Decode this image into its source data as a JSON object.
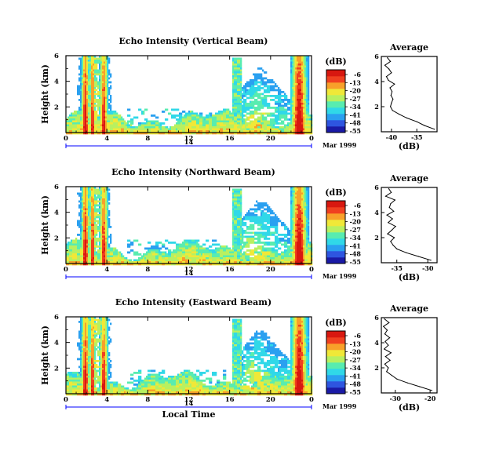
{
  "chart_data": [
    {
      "type": "heatmap",
      "title": "Echo Intensity (Vertical Beam)",
      "ylabel": "Height (km)",
      "xlabel": "",
      "x_ticks": [
        "0",
        "4",
        "8",
        "12",
        "16",
        "20",
        "0"
      ],
      "xlim": [
        0,
        24
      ],
      "y_ticks": [
        "6",
        "4",
        "2"
      ],
      "ylim": [
        0,
        6
      ],
      "date_marker": "14",
      "date_label": "Mar 1999",
      "colorbar": {
        "unit": "(dB)",
        "ticks": [
          "-6",
          "-13",
          "-20",
          "-27",
          "-34",
          "-41",
          "-48",
          "-55"
        ]
      },
      "profile": {
        "title": "Average",
        "xlabel": "(dB)",
        "x_ticks": [
          "-40",
          "-35"
        ],
        "xlim": [
          -42,
          -31
        ],
        "y_ticks": [
          "6",
          "4",
          "2"
        ],
        "ylim": [
          0,
          6
        ],
        "heights": [
          0.2,
          0.5,
          0.8,
          1.1,
          1.4,
          1.7,
          2.0,
          2.3,
          2.6,
          2.9,
          3.2,
          3.5,
          3.8,
          4.1,
          4.4,
          4.7,
          5.0,
          5.3,
          5.6,
          5.9
        ],
        "values": [
          -31.5,
          -33.5,
          -35.0,
          -37.0,
          -38.5,
          -39.8,
          -40.2,
          -40.0,
          -39.7,
          -40.1,
          -39.9,
          -40.3,
          -39.4,
          -40.6,
          -41.0,
          -40.0,
          -40.5,
          -41.3,
          -40.2,
          -40.8
        ]
      }
    },
    {
      "type": "heatmap",
      "title": "Echo Intensity (Northward Beam)",
      "ylabel": "Height (km)",
      "xlabel": "",
      "x_ticks": [
        "0",
        "4",
        "8",
        "12",
        "16",
        "20",
        "0"
      ],
      "xlim": [
        0,
        24
      ],
      "y_ticks": [
        "6",
        "4",
        "2"
      ],
      "ylim": [
        0,
        6
      ],
      "date_marker": "14",
      "date_label": "Mar 1999",
      "colorbar": {
        "unit": "(dB)",
        "ticks": [
          "-6",
          "-13",
          "-20",
          "-27",
          "-34",
          "-41",
          "-48",
          "-55"
        ]
      },
      "profile": {
        "title": "Average",
        "xlabel": "(dB)",
        "x_ticks": [
          "-35",
          "-30"
        ],
        "xlim": [
          -37.5,
          -28.5
        ],
        "y_ticks": [
          "6",
          "4",
          "2"
        ],
        "ylim": [
          0,
          6
        ],
        "heights": [
          0.2,
          0.5,
          0.8,
          1.1,
          1.4,
          1.7,
          2.0,
          2.3,
          2.6,
          2.9,
          3.2,
          3.5,
          3.8,
          4.1,
          4.4,
          4.7,
          5.0,
          5.3,
          5.6,
          5.9
        ],
        "values": [
          -29.5,
          -31.5,
          -33.5,
          -35.0,
          -35.6,
          -36.0,
          -35.4,
          -36.5,
          -35.8,
          -35.2,
          -36.4,
          -35.7,
          -36.6,
          -35.5,
          -36.2,
          -36.0,
          -35.3,
          -36.8,
          -35.9,
          -36.3
        ]
      }
    },
    {
      "type": "heatmap",
      "title": "Echo Intensity (Eastward Beam)",
      "ylabel": "Height (km)",
      "xlabel": "Local Time",
      "x_ticks": [
        "0",
        "4",
        "8",
        "12",
        "16",
        "20",
        "0"
      ],
      "xlim": [
        0,
        24
      ],
      "y_ticks": [
        "6",
        "4",
        "2"
      ],
      "ylim": [
        0,
        6
      ],
      "date_marker": "14",
      "date_label": "Mar 1999",
      "colorbar": {
        "unit": "(dB)",
        "ticks": [
          "-6",
          "-13",
          "-20",
          "-27",
          "-34",
          "-41",
          "-48",
          "-55"
        ]
      },
      "profile": {
        "title": "Average",
        "xlabel": "(dB)",
        "x_ticks": [
          "-30",
          "-20"
        ],
        "xlim": [
          -34,
          -18
        ],
        "y_ticks": [
          "6",
          "4",
          "2"
        ],
        "ylim": [
          0,
          6
        ],
        "heights": [
          0.2,
          0.5,
          0.8,
          1.1,
          1.4,
          1.7,
          2.0,
          2.3,
          2.6,
          2.9,
          3.2,
          3.5,
          3.8,
          4.1,
          4.4,
          4.7,
          5.0,
          5.3,
          5.6,
          5.9
        ],
        "values": [
          -19.5,
          -23.0,
          -26.5,
          -29.5,
          -31.0,
          -32.5,
          -32.0,
          -33.0,
          -31.5,
          -32.8,
          -31.2,
          -33.2,
          -32.0,
          -32.9,
          -31.6,
          -33.0,
          -32.3,
          -33.4,
          -31.8,
          -33.1
        ]
      }
    }
  ],
  "colors": {
    "scale": [
      "#1a1aa6",
      "#2e55e0",
      "#2aa0f0",
      "#30d8e8",
      "#58ecb0",
      "#b8f060",
      "#f0e838",
      "#f8a02a",
      "#f04020",
      "#d81810"
    ],
    "date_line": "#0000ff"
  }
}
